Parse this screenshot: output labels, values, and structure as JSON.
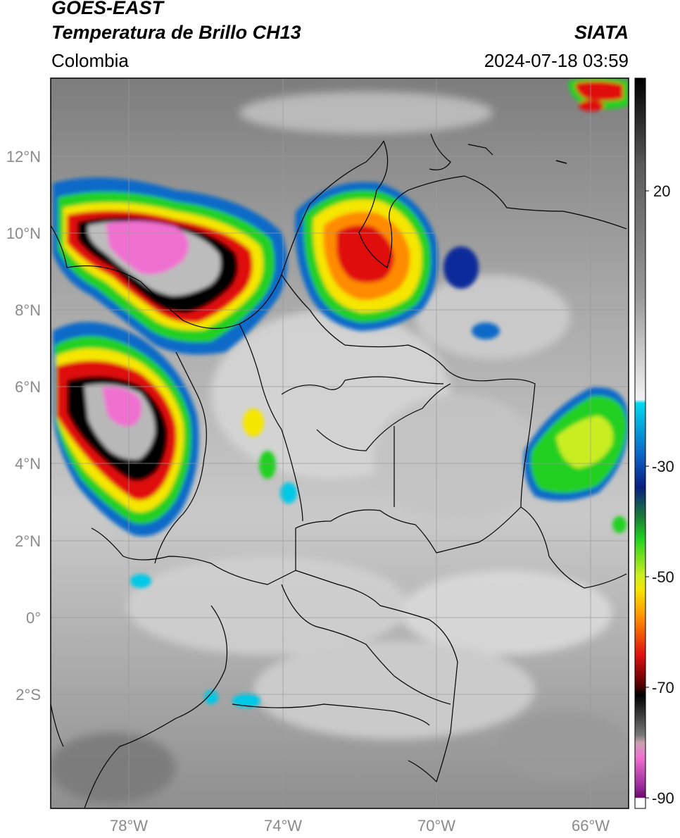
{
  "header": {
    "line1": "GOES-EAST",
    "line2": "Temperatura de Brillo CH13",
    "region": "Colombia",
    "source": "SIATA",
    "datetime": "2024-07-18 03:59"
  },
  "axes": {
    "lat_labels": [
      "12°N",
      "10°N",
      "8°N",
      "6°N",
      "4°N",
      "2°N",
      "0°",
      "2°S"
    ],
    "lon_labels": [
      "78°W",
      "74°W",
      "70°W",
      "66°W"
    ]
  },
  "colorbar": {
    "tick_labels": [
      "20",
      "-30",
      "-50",
      "-70",
      "-90"
    ],
    "colors": {
      "warm": "#ffffff",
      "cyan": "#00c8e6",
      "blue": "#0a2a9a",
      "green": "#20d020",
      "yellow": "#f5e600",
      "orange": "#ff8c00",
      "red": "#e01010",
      "black": "#000000",
      "magenta": "#e060c8",
      "purple": "#8a1a8a"
    }
  }
}
